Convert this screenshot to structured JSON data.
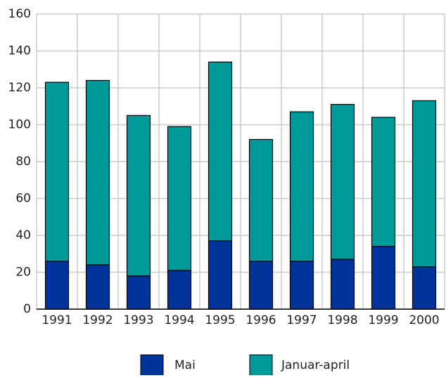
{
  "chart_data": {
    "type": "stacked_bar",
    "categories": [
      "1991",
      "1992",
      "1993",
      "1994",
      "1995",
      "1996",
      "1997",
      "1998",
      "1999",
      "2000"
    ],
    "series": [
      {
        "name": "Mai",
        "color": "#003399",
        "values": [
          26,
          24,
          18,
          21,
          37,
          26,
          26,
          27,
          34,
          23
        ]
      },
      {
        "name": "Januar-april",
        "color": "#009999",
        "values": [
          97,
          100,
          87,
          78,
          97,
          66,
          81,
          84,
          70,
          90
        ]
      }
    ],
    "ylim": [
      0,
      160
    ],
    "yticks": [
      0,
      20,
      40,
      60,
      80,
      100,
      120,
      140,
      160
    ],
    "grid": true,
    "legend": "bottom"
  }
}
